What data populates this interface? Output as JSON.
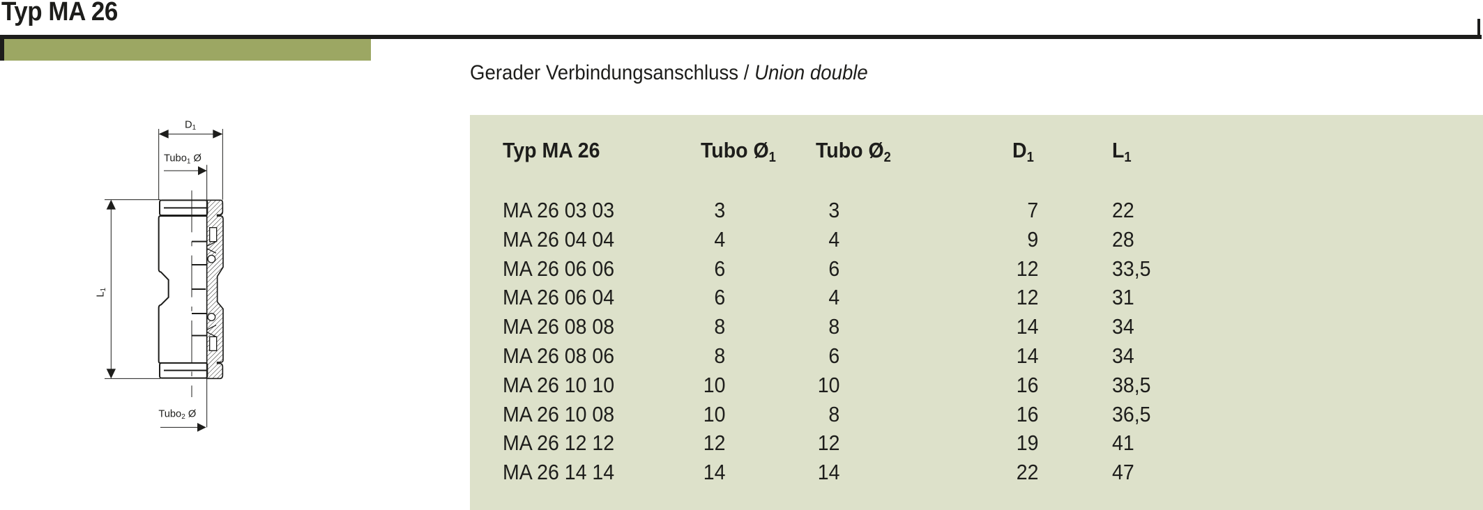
{
  "title": "Typ MA 26",
  "subtitle": {
    "de": "Gerader Verbindungsanschluss",
    "separator": " / ",
    "en": "Union double"
  },
  "accent_color": "#9ca763",
  "panel_color": "#dde1ca",
  "diagram": {
    "d1_label": "D",
    "d1_sub": "1",
    "tubo1_label": "Tubo",
    "tubo1_sub": "1",
    "tubo1_symbol": " Ø",
    "tubo2_label": "Tubo",
    "tubo2_sub": "2",
    "tubo2_symbol": " Ø",
    "l1_label": "L",
    "l1_sub": "1"
  },
  "table": {
    "headers": [
      {
        "text": "Typ MA 26",
        "sub": ""
      },
      {
        "text": "Tubo Ø",
        "sub": "1"
      },
      {
        "text": "Tubo Ø",
        "sub": "2"
      },
      {
        "text": "D",
        "sub": "1"
      },
      {
        "text": "L",
        "sub": "1"
      }
    ],
    "rows": [
      [
        "MA 26 03 03",
        "3",
        "3",
        "7",
        "22"
      ],
      [
        "MA 26 04 04",
        "4",
        "4",
        "9",
        "28"
      ],
      [
        "MA 26 06 06",
        "6",
        "6",
        "12",
        "33,5"
      ],
      [
        "MA 26 06 04",
        "6",
        "4",
        "12",
        "31"
      ],
      [
        "MA 26 08 08",
        "8",
        "8",
        "14",
        "34"
      ],
      [
        "MA 26 08 06",
        "8",
        "6",
        "14",
        "34"
      ],
      [
        "MA 26 10 10",
        "10",
        "10",
        "16",
        "38,5"
      ],
      [
        "MA 26 10 08",
        "10",
        "8",
        "16",
        "36,5"
      ],
      [
        "MA 26 12 12",
        "12",
        "12",
        "19",
        "41"
      ],
      [
        "MA 26 14 14",
        "14",
        "14",
        "22",
        "47"
      ]
    ]
  }
}
